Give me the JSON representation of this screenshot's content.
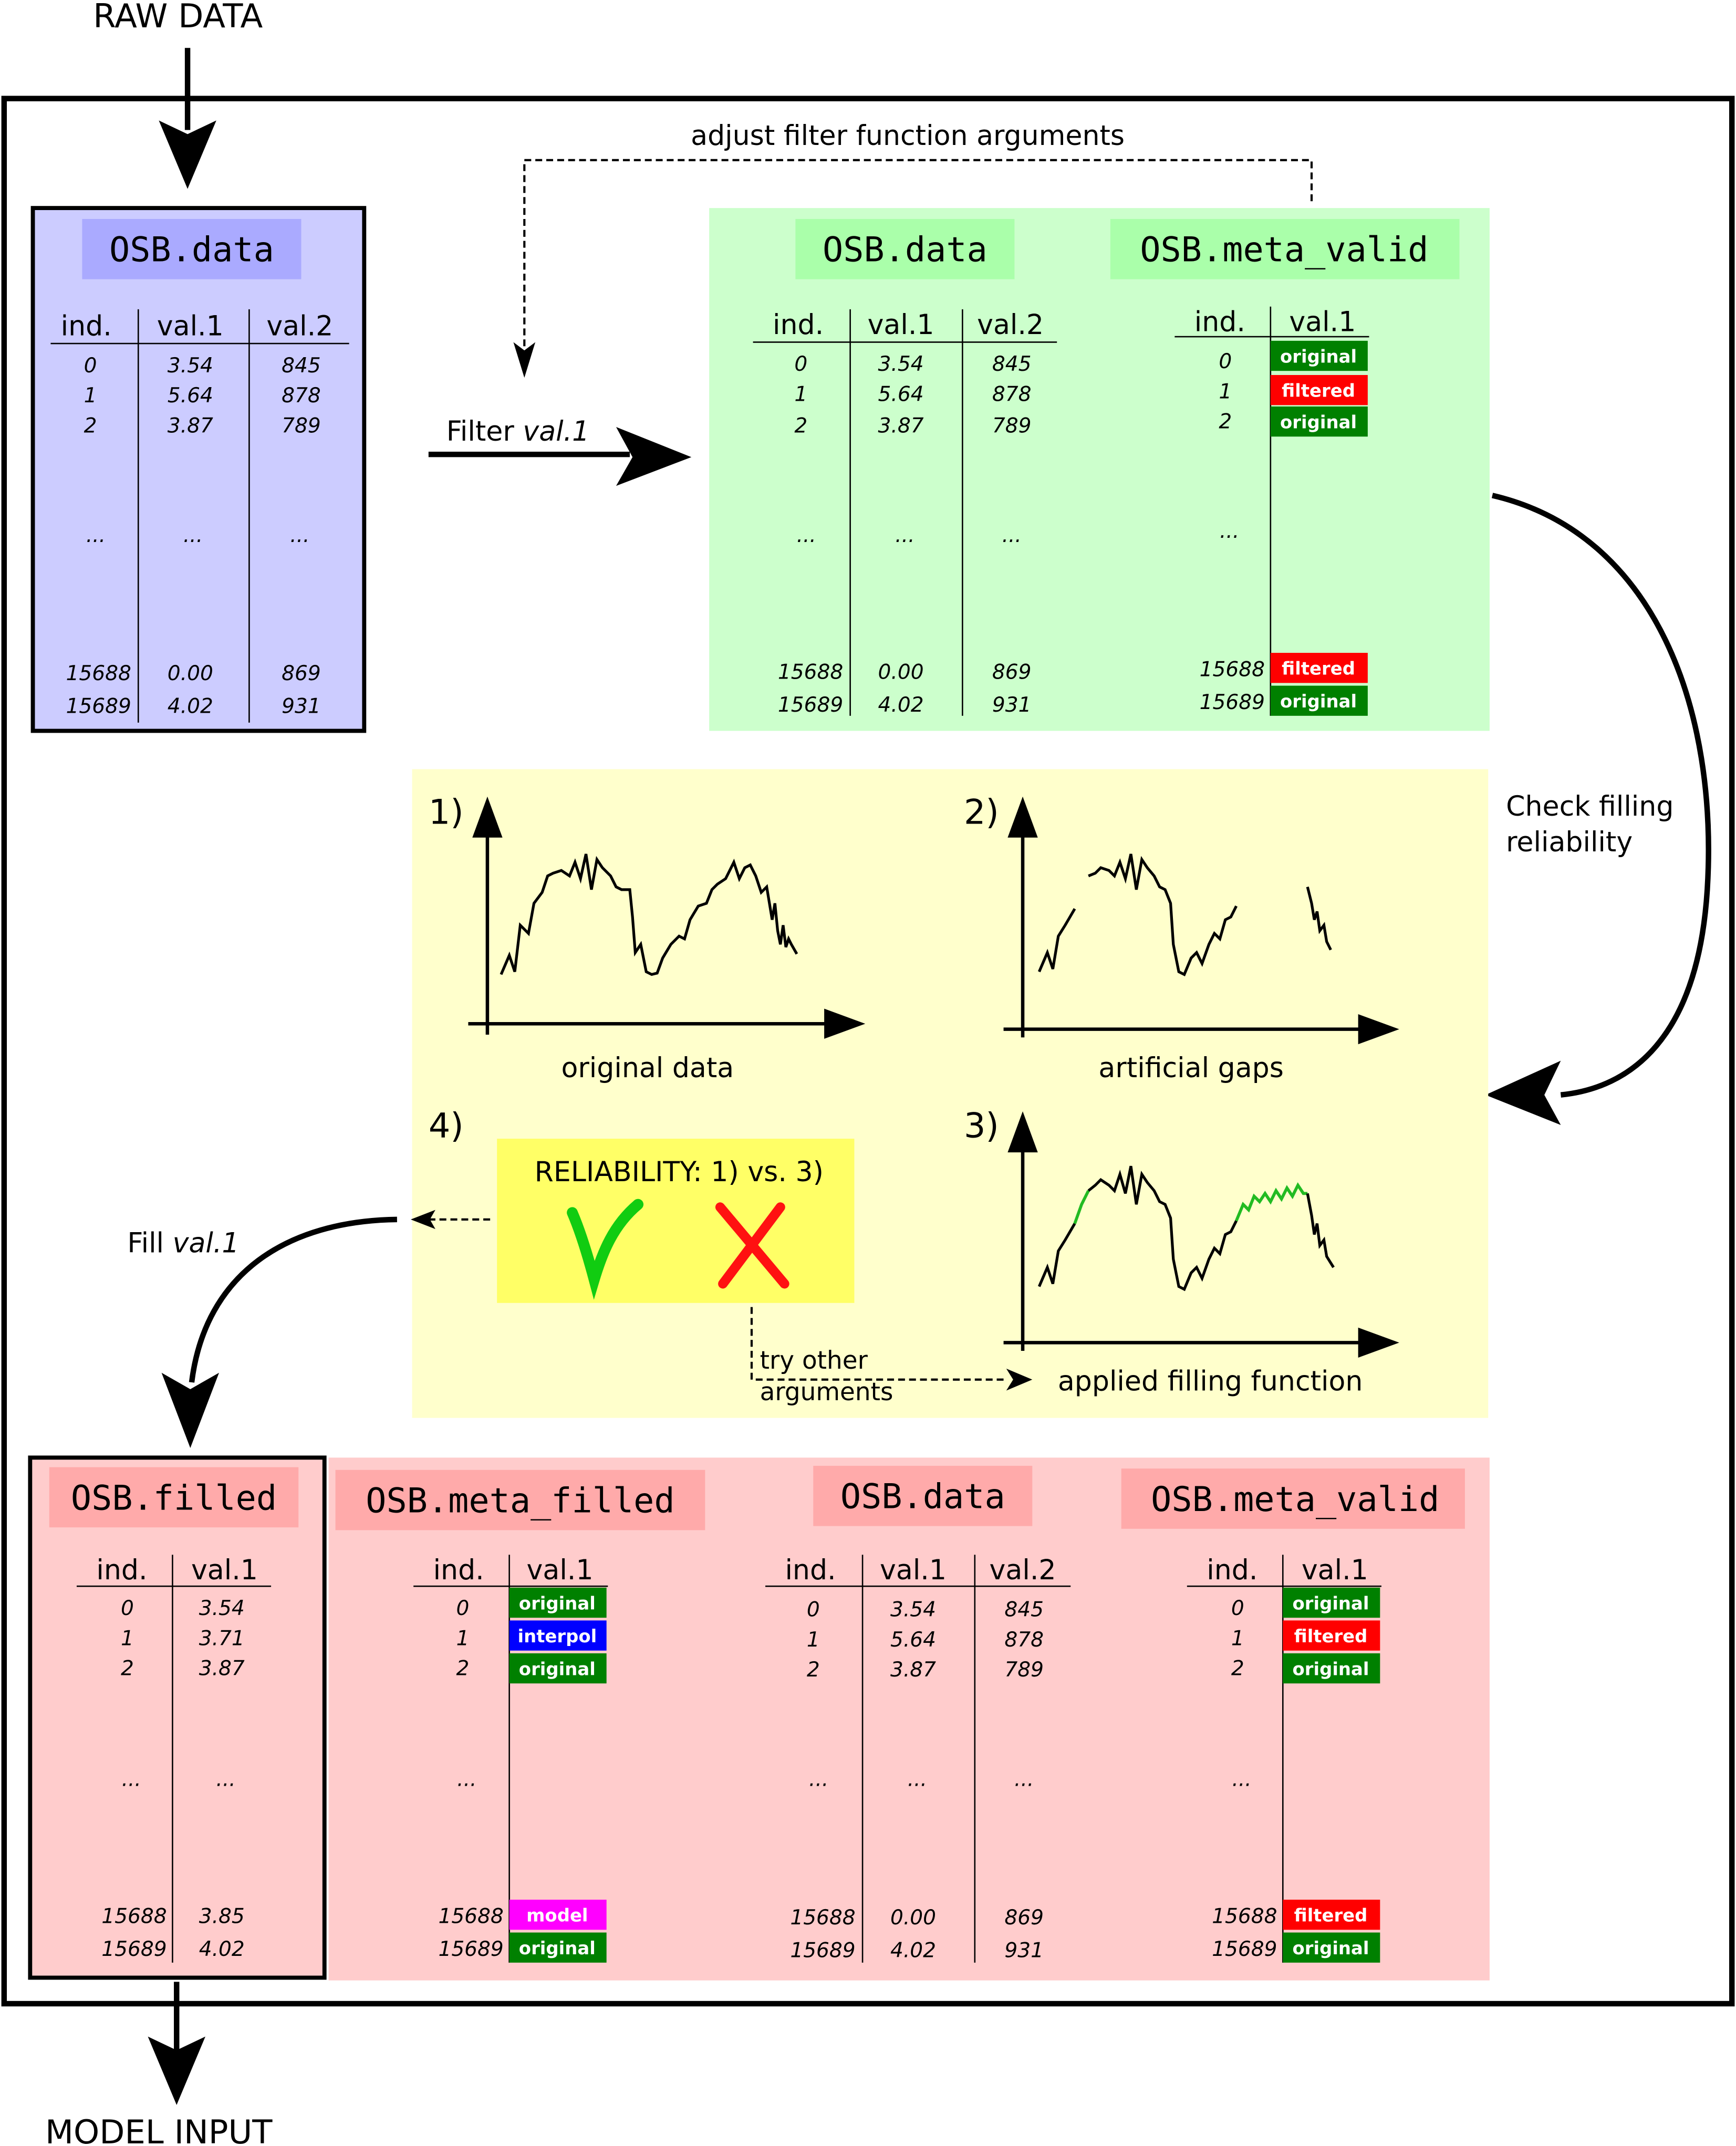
{
  "labels": {
    "raw_data": "RAW DATA",
    "model_input": "MODEL INPUT",
    "adjust": "adjust filter function arguments",
    "filter_prefix": "Filter ",
    "filter_var": "val.1",
    "check_line1": "Check filling",
    "check_line2": "reliability",
    "fill_prefix": "Fill ",
    "fill_var": "val.1",
    "try_line1": "try other",
    "try_line2": "arguments",
    "reliability": "RELIABILITY: 1) vs. 3)",
    "check_mark": "check-mark",
    "cross_mark": "cross-mark"
  },
  "headers": {
    "ind": "ind.",
    "val1": "val.1",
    "val2": "val.2",
    "ellipsis": "..."
  },
  "titles": {
    "osb_data": "OSB.data",
    "osb_meta_valid": "OSB.meta_valid",
    "osb_filled": "OSB.filled",
    "osb_meta_filled": "OSB.meta_filled"
  },
  "data_table": {
    "ind": [
      "0",
      "1",
      "2",
      "15688",
      "15689"
    ],
    "val1": [
      "3.54",
      "5.64",
      "3.87",
      "0.00",
      "4.02"
    ],
    "val2": [
      "845",
      "878",
      "789",
      "869",
      "931"
    ]
  },
  "meta_valid": {
    "ind": [
      "0",
      "1",
      "2",
      "15688",
      "15689"
    ],
    "status": [
      "original",
      "filtered",
      "original",
      "filtered",
      "original"
    ]
  },
  "filled_table": {
    "ind": [
      "0",
      "1",
      "2",
      "15688",
      "15689"
    ],
    "val1": [
      "3.54",
      "3.71",
      "3.87",
      "3.85",
      "4.02"
    ]
  },
  "meta_filled": {
    "ind": [
      "0",
      "1",
      "2",
      "15688",
      "15689"
    ],
    "status": [
      "original",
      "interpol",
      "original",
      "model",
      "original"
    ]
  },
  "status_colors": {
    "original": "#008000",
    "filtered": "#ff0000",
    "interpol": "#0000ff",
    "model": "#ff00ff"
  },
  "panels": {
    "p1": {
      "number": "1)",
      "caption": "original data"
    },
    "p2": {
      "number": "2)",
      "caption": "artificial gaps"
    },
    "p3": {
      "number": "3)",
      "caption": "applied filling function"
    },
    "p4": {
      "number": "4)"
    }
  },
  "colors": {
    "blue_box": "#ccccff",
    "blue_title": "#aaaaff",
    "green_box": "#ccffcc",
    "green_title": "#aaffaa",
    "yellow_box": "#ffffcc",
    "yellow_inner": "#ffff66",
    "red_box": "#ffcccc",
    "red_title": "#ffaaaa",
    "fill_green": "#22bb22",
    "check_green": "#11cc11",
    "cross_red": "#ff1111"
  }
}
